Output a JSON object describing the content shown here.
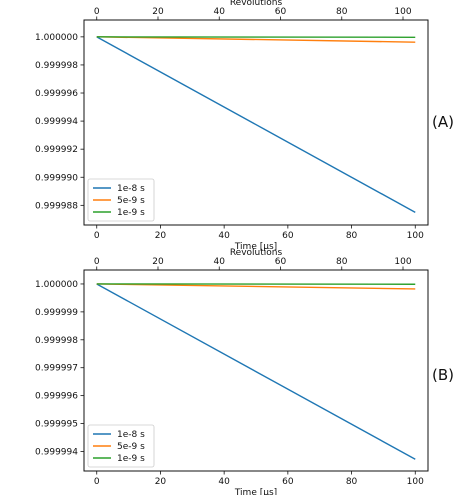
{
  "chart_data": [
    {
      "type": "line",
      "panel_label": "(A)",
      "xlabel": "Time [μs]",
      "top_xlabel": "Revolutions",
      "ylabel": "",
      "xlim": [
        -4,
        104
      ],
      "ylim": [
        0.9999866,
        1.0000012
      ],
      "top_xlim": [
        -4.16,
        108.16
      ],
      "xticks": [
        0,
        20,
        40,
        60,
        80,
        100
      ],
      "top_xticks": [
        0,
        20,
        40,
        60,
        80,
        100
      ],
      "yticks": [
        1.0,
        0.999998,
        0.999996,
        0.999994,
        0.999992,
        0.99999,
        0.999988
      ],
      "ytick_labels": [
        "1.000000",
        "0.999998",
        "0.999996",
        "0.999994",
        "0.999992",
        "0.999990",
        "0.999988"
      ],
      "legend_position": "lower-left",
      "grid": false,
      "series": [
        {
          "name": "1e-8 s",
          "color": "#1f77b4",
          "x": [
            0,
            100
          ],
          "y": [
            1.0,
            0.9999875
          ]
        },
        {
          "name": "5e-9 s",
          "color": "#ff7f0e",
          "x": [
            0,
            100
          ],
          "y": [
            1.0,
            0.99999962
          ]
        },
        {
          "name": "1e-9 s",
          "color": "#2ca02c",
          "x": [
            0,
            100
          ],
          "y": [
            1.0,
            0.99999997
          ]
        }
      ]
    },
    {
      "type": "line",
      "panel_label": "(B)",
      "xlabel": "Time [μs]",
      "top_xlabel": "Revolutions",
      "ylabel": "",
      "xlim": [
        -4,
        104
      ],
      "ylim": [
        0.9999933,
        1.0000005
      ],
      "top_xlim": [
        -4.16,
        108.16
      ],
      "xticks": [
        0,
        20,
        40,
        60,
        80,
        100
      ],
      "top_xticks": [
        0,
        20,
        40,
        60,
        80,
        100
      ],
      "yticks": [
        1.0,
        0.999999,
        0.999998,
        0.999997,
        0.999996,
        0.999995,
        0.999994
      ],
      "ytick_labels": [
        "1.000000",
        "0.999999",
        "0.999998",
        "0.999997",
        "0.999996",
        "0.999995",
        "0.999994"
      ],
      "legend_position": "lower-left",
      "grid": false,
      "series": [
        {
          "name": "1e-8 s",
          "color": "#1f77b4",
          "x": [
            0,
            100
          ],
          "y": [
            1.0,
            0.99999372
          ]
        },
        {
          "name": "5e-9 s",
          "color": "#ff7f0e",
          "x": [
            0,
            100
          ],
          "y": [
            1.0,
            0.99999982
          ]
        },
        {
          "name": "1e-9 s",
          "color": "#2ca02c",
          "x": [
            0,
            100
          ],
          "y": [
            1.0,
            0.99999999
          ]
        }
      ]
    }
  ]
}
